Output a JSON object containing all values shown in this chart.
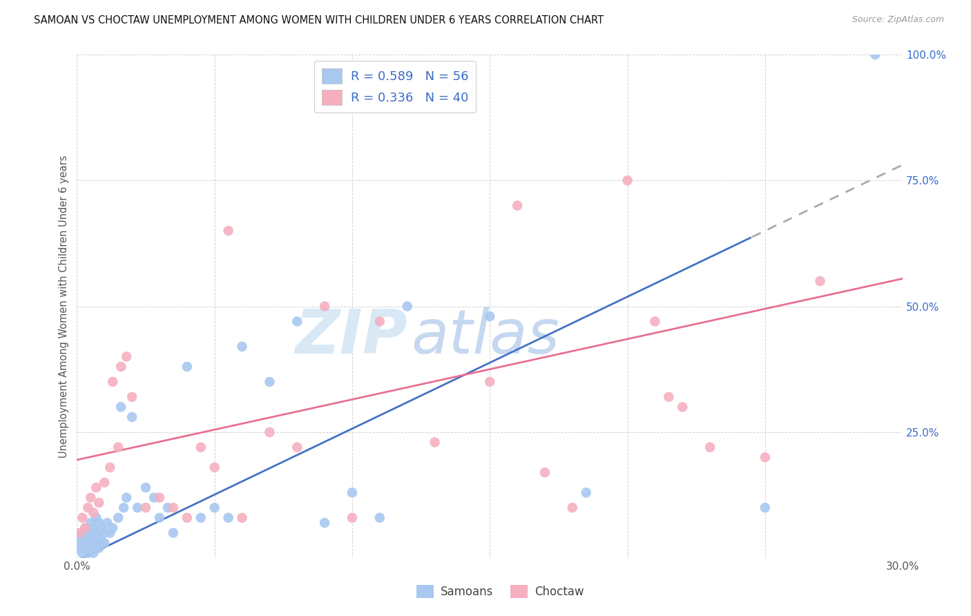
{
  "title": "SAMOAN VS CHOCTAW UNEMPLOYMENT AMONG WOMEN WITH CHILDREN UNDER 6 YEARS CORRELATION CHART",
  "source": "Source: ZipAtlas.com",
  "ylabel": "Unemployment Among Women with Children Under 6 years",
  "xlim": [
    0.0,
    0.3
  ],
  "ylim": [
    0.0,
    1.0
  ],
  "xticks": [
    0.0,
    0.05,
    0.1,
    0.15,
    0.2,
    0.25,
    0.3
  ],
  "yticks": [
    0.0,
    0.25,
    0.5,
    0.75,
    1.0
  ],
  "xtick_labels": [
    "0.0%",
    "",
    "",
    "",
    "",
    "",
    "30.0%"
  ],
  "ytick_labels": [
    "",
    "25.0%",
    "50.0%",
    "75.0%",
    "100.0%"
  ],
  "blue_scatter_color": "#A8C8F0",
  "pink_scatter_color": "#F5B0C0",
  "blue_line_color": "#4472C4",
  "pink_line_color": "#E87090",
  "dashed_color": "#AAAAAA",
  "legend_text_color": "#3A6BC8",
  "samoans_label": "Samoans",
  "choctaw_label": "Choctaw",
  "blue_r": "0.589",
  "blue_n": "56",
  "pink_r": "0.336",
  "pink_n": "40",
  "blue_slope": 2.62,
  "blue_intercept": -0.005,
  "pink_slope": 1.2,
  "pink_intercept": 0.195,
  "blue_dash_cutoff": 0.245,
  "samoans_x": [
    0.001,
    0.001,
    0.002,
    0.002,
    0.002,
    0.003,
    0.003,
    0.003,
    0.004,
    0.004,
    0.004,
    0.005,
    0.005,
    0.005,
    0.006,
    0.006,
    0.006,
    0.007,
    0.007,
    0.007,
    0.008,
    0.008,
    0.008,
    0.009,
    0.009,
    0.01,
    0.01,
    0.011,
    0.012,
    0.013,
    0.015,
    0.016,
    0.017,
    0.018,
    0.02,
    0.022,
    0.025,
    0.028,
    0.03,
    0.033,
    0.035,
    0.04,
    0.045,
    0.05,
    0.055,
    0.06,
    0.07,
    0.08,
    0.09,
    0.1,
    0.11,
    0.12,
    0.15,
    0.185,
    0.25,
    0.29
  ],
  "samoans_y": [
    0.02,
    0.04,
    0.01,
    0.03,
    0.05,
    0.02,
    0.04,
    0.06,
    0.01,
    0.03,
    0.05,
    0.02,
    0.04,
    0.07,
    0.01,
    0.03,
    0.06,
    0.02,
    0.05,
    0.08,
    0.02,
    0.04,
    0.07,
    0.03,
    0.06,
    0.03,
    0.05,
    0.07,
    0.05,
    0.06,
    0.08,
    0.3,
    0.1,
    0.12,
    0.28,
    0.1,
    0.14,
    0.12,
    0.08,
    0.1,
    0.05,
    0.38,
    0.08,
    0.1,
    0.08,
    0.42,
    0.35,
    0.47,
    0.07,
    0.13,
    0.08,
    0.5,
    0.48,
    0.13,
    0.1,
    1.0
  ],
  "choctaw_x": [
    0.001,
    0.002,
    0.003,
    0.004,
    0.005,
    0.006,
    0.007,
    0.008,
    0.01,
    0.012,
    0.013,
    0.015,
    0.016,
    0.018,
    0.02,
    0.025,
    0.03,
    0.035,
    0.04,
    0.045,
    0.05,
    0.055,
    0.06,
    0.07,
    0.08,
    0.09,
    0.1,
    0.11,
    0.13,
    0.15,
    0.16,
    0.17,
    0.18,
    0.2,
    0.21,
    0.215,
    0.22,
    0.23,
    0.25,
    0.27
  ],
  "choctaw_y": [
    0.05,
    0.08,
    0.06,
    0.1,
    0.12,
    0.09,
    0.14,
    0.11,
    0.15,
    0.18,
    0.35,
    0.22,
    0.38,
    0.4,
    0.32,
    0.1,
    0.12,
    0.1,
    0.08,
    0.22,
    0.18,
    0.65,
    0.08,
    0.25,
    0.22,
    0.5,
    0.08,
    0.47,
    0.23,
    0.35,
    0.7,
    0.17,
    0.1,
    0.75,
    0.47,
    0.32,
    0.3,
    0.22,
    0.2,
    0.55
  ]
}
